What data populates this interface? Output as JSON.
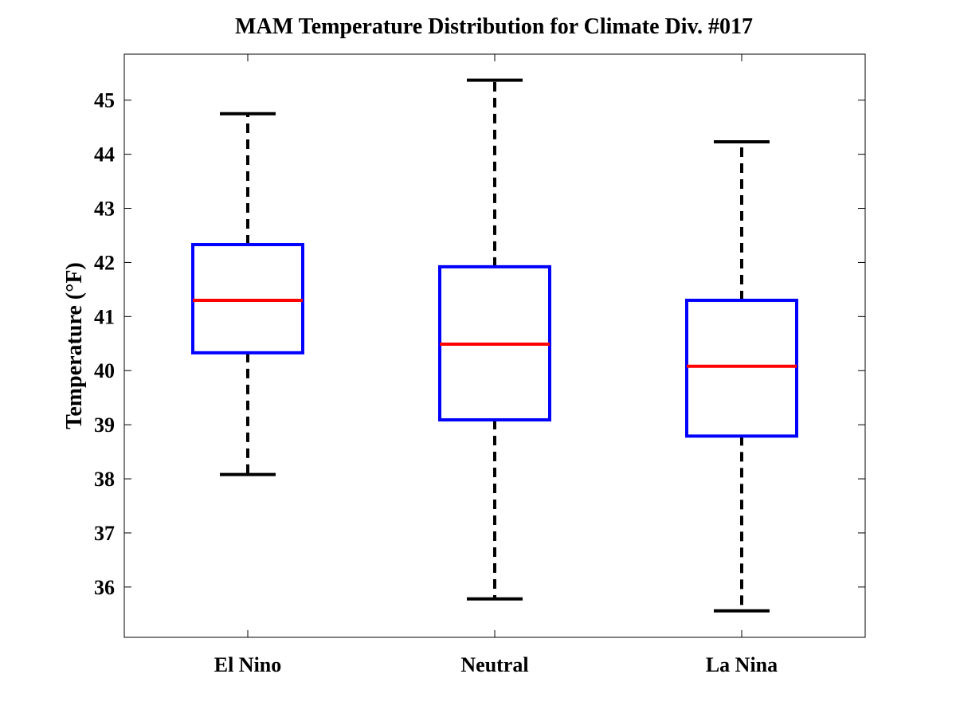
{
  "chart_data": {
    "type": "boxplot",
    "title": "MAM Temperature Distribution for Climate Div. #017",
    "xlabel": "",
    "ylabel": "Temperature (°F)",
    "ylim": [
      35.07,
      45.85
    ],
    "yticks": [
      36,
      37,
      38,
      39,
      40,
      41,
      42,
      43,
      44,
      45
    ],
    "grid": false,
    "categories": [
      "El Nino",
      "Neutral",
      "La Nina"
    ],
    "boxes": [
      {
        "name": "El Nino",
        "whisker_low": 38.08,
        "q1": 40.33,
        "median": 41.3,
        "q3": 42.33,
        "whisker_high": 44.75
      },
      {
        "name": "Neutral",
        "whisker_low": 35.78,
        "q1": 39.09,
        "median": 40.49,
        "q3": 41.92,
        "whisker_high": 45.37
      },
      {
        "name": "La Nina",
        "whisker_low": 35.56,
        "q1": 38.79,
        "median": 40.08,
        "q3": 41.3,
        "whisker_high": 44.23
      }
    ],
    "colors": {
      "box": "#0000ff",
      "median": "#ff0000",
      "whisker": "#000000",
      "axis": "#000000"
    }
  }
}
